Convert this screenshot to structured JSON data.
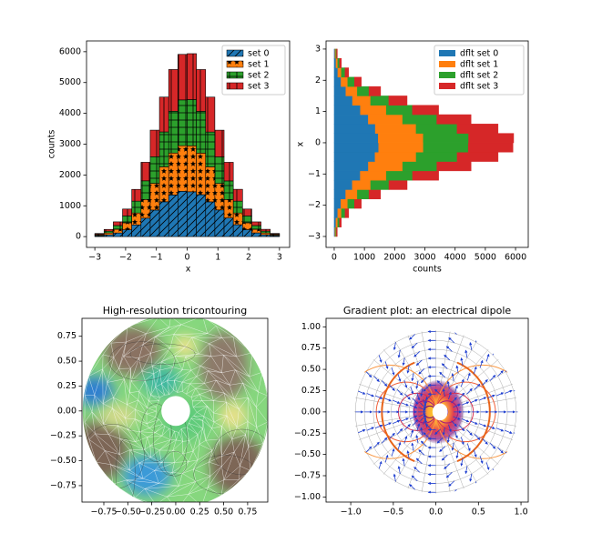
{
  "chart_data": [
    {
      "type": "histogram",
      "orientation": "vertical",
      "xlabel": "x",
      "ylabel": "counts",
      "legend": "upper right",
      "bins": [
        -3,
        -2.7,
        -2.4,
        -2.1,
        -1.8,
        -1.5,
        -1.2,
        -0.9,
        -0.6,
        -0.3,
        0,
        0.3,
        0.6,
        0.9,
        1.2,
        1.5,
        1.8,
        2.1,
        2.4,
        2.7,
        3
      ],
      "series": [
        {
          "name": "set 0",
          "color": "#1f77b4",
          "hatch": "/",
          "values": [
            25,
            58,
            118,
            222,
            380,
            600,
            862,
            1130,
            1352,
            1470,
            1455,
            1360,
            1128,
            866,
            605,
            386,
            226,
            120,
            60,
            27
          ]
        },
        {
          "name": "set 1",
          "color": "#ff7f0e",
          "hatch": "*",
          "values": [
            26,
            60,
            122,
            226,
            386,
            606,
            866,
            1135,
            1360,
            1480,
            1492,
            1350,
            1136,
            860,
            600,
            380,
            222,
            118,
            58,
            25
          ]
        },
        {
          "name": "set 2",
          "color": "#2ca02c",
          "hatch": "+",
          "values": [
            24,
            57,
            120,
            224,
            384,
            604,
            864,
            1132,
            1356,
            1486,
            1500,
            1356,
            1130,
            862,
            602,
            384,
            224,
            121,
            59,
            26
          ]
        },
        {
          "name": "set 3",
          "color": "#d62728",
          "hatch": "|",
          "values": [
            26,
            59,
            119,
            223,
            383,
            602,
            863,
            1131,
            1354,
            1478,
            1490,
            1355,
            1133,
            866,
            604,
            385,
            223,
            119,
            60,
            25
          ]
        }
      ],
      "xlim": [
        -3.27,
        3.33
      ],
      "ylim": [
        -350,
        6350
      ],
      "xticks": [
        {
          "value": -3,
          "label": "−3"
        },
        {
          "value": -2,
          "label": "−2"
        },
        {
          "value": -1,
          "label": "−1"
        },
        0,
        1,
        2,
        3
      ],
      "yticks": [
        0,
        1000,
        2000,
        3000,
        4000,
        5000,
        6000
      ]
    },
    {
      "type": "histogram",
      "orientation": "horizontal",
      "xlabel": "counts",
      "ylabel": "x",
      "legend": "upper right",
      "bins": [
        -3,
        -2.7,
        -2.4,
        -2.1,
        -1.8,
        -1.5,
        -1.2,
        -0.9,
        -0.6,
        -0.3,
        0,
        0.3,
        0.6,
        0.9,
        1.2,
        1.5,
        1.8,
        2.1,
        2.4,
        2.7,
        3
      ],
      "series": [
        {
          "name": "dflt set 0",
          "color": "#1f77b4",
          "values": [
            25,
            58,
            118,
            222,
            380,
            600,
            862,
            1130,
            1352,
            1470,
            1455,
            1360,
            1128,
            866,
            605,
            386,
            226,
            120,
            60,
            27
          ]
        },
        {
          "name": "dflt set 1",
          "color": "#ff7f0e",
          "values": [
            26,
            60,
            122,
            226,
            386,
            606,
            866,
            1135,
            1360,
            1480,
            1492,
            1350,
            1136,
            860,
            600,
            380,
            222,
            118,
            58,
            25
          ]
        },
        {
          "name": "dflt set 2",
          "color": "#2ca02c",
          "values": [
            24,
            57,
            120,
            224,
            384,
            604,
            864,
            1132,
            1356,
            1486,
            1500,
            1356,
            1130,
            862,
            602,
            384,
            224,
            121,
            59,
            26
          ]
        },
        {
          "name": "dflt set 3",
          "color": "#d62728",
          "values": [
            26,
            59,
            119,
            223,
            383,
            602,
            863,
            1131,
            1354,
            1478,
            1490,
            1355,
            1133,
            866,
            604,
            385,
            223,
            119,
            60,
            25
          ]
        }
      ],
      "xlim": [
        -270,
        6420
      ],
      "ylim": [
        -3.35,
        3.26
      ],
      "xticks": [
        0,
        1000,
        2000,
        3000,
        4000,
        5000,
        6000
      ],
      "yticks": [
        {
          "value": -3,
          "label": "−3"
        },
        {
          "value": -2,
          "label": "−2"
        },
        {
          "value": -1,
          "label": "−1"
        },
        0,
        1,
        2,
        3
      ]
    },
    {
      "type": "tricontour",
      "title": "High-resolution tricontouring",
      "xlim": [
        -0.978,
        0.96
      ],
      "ylim": [
        -0.915,
        0.93
      ],
      "xticks": [
        {
          "value": -0.75,
          "label": "−0.75"
        },
        {
          "value": -0.5,
          "label": "−0.50"
        },
        {
          "value": -0.25,
          "label": "−0.25"
        },
        {
          "value": 0,
          "label": "0.00"
        },
        0.25,
        {
          "value": 0.5,
          "label": "0.50"
        },
        0.75
      ],
      "yticks": [
        {
          "value": -0.75,
          "label": "−0.75"
        },
        {
          "value": -0.5,
          "label": "−0.50"
        },
        {
          "value": -0.25,
          "label": "−0.25"
        },
        {
          "value": 0,
          "label": "0.00"
        },
        0.25,
        {
          "value": 0.5,
          "label": "0.50"
        },
        0.75
      ]
    },
    {
      "type": "dipole",
      "title": "Gradient plot: an electrical dipole",
      "xlim": [
        -1.29,
        1.085
      ],
      "ylim": [
        -1.06,
        1.1
      ],
      "xticks": [
        {
          "value": -1,
          "label": "−1.0"
        },
        {
          "value": -0.5,
          "label": "−0.5"
        },
        {
          "value": 0,
          "label": "0.0"
        },
        0.5,
        {
          "value": 1,
          "label": "1.0"
        }
      ],
      "yticks": [
        {
          "value": -1,
          "label": "−1.00"
        },
        {
          "value": -0.75,
          "label": "−0.75"
        },
        {
          "value": -0.5,
          "label": "−0.50"
        },
        {
          "value": -0.25,
          "label": "−0.25"
        },
        {
          "value": 0,
          "label": "0.00"
        },
        0.25,
        {
          "value": 0.5,
          "label": "0.50"
        },
        0.75,
        {
          "value": 1,
          "label": "1.00"
        }
      ]
    }
  ]
}
